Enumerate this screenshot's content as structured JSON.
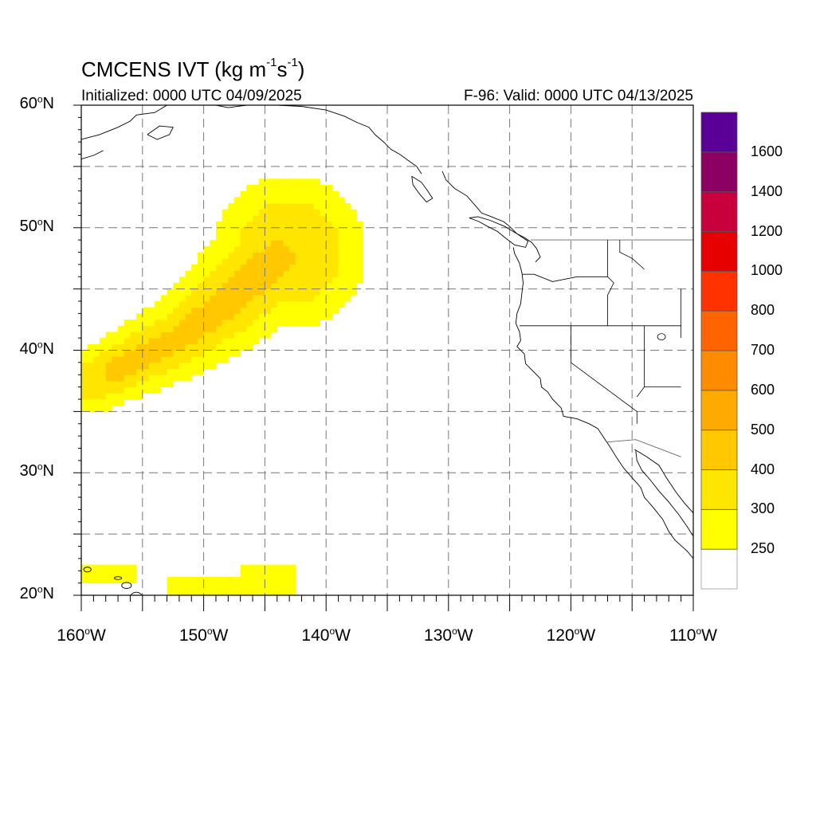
{
  "title": {
    "main": "CMCENS IVT (kg m",
    "sup1": "-1",
    "mid": "s",
    "sup2": "-1",
    "end": ")"
  },
  "initialized": "Initialized: 0000 UTC 04/09/2025",
  "valid": "F-96: Valid: 0000 UTC 04/13/2025",
  "lat_labels": [
    {
      "value": "60",
      "deg": "o",
      "hem": "N",
      "lat": 60
    },
    {
      "value": "50",
      "deg": "o",
      "hem": "N",
      "lat": 50
    },
    {
      "value": "40",
      "deg": "o",
      "hem": "N",
      "lat": 40
    },
    {
      "value": "30",
      "deg": "o",
      "hem": "N",
      "lat": 30
    },
    {
      "value": "20",
      "deg": "o",
      "hem": "N",
      "lat": 20
    }
  ],
  "lon_labels": [
    {
      "value": "160",
      "deg": "o",
      "hem": "W",
      "lon": -160
    },
    {
      "value": "150",
      "deg": "o",
      "hem": "W",
      "lon": -150
    },
    {
      "value": "140",
      "deg": "o",
      "hem": "W",
      "lon": -140
    },
    {
      "value": "130",
      "deg": "o",
      "hem": "W",
      "lon": -130
    },
    {
      "value": "120",
      "deg": "o",
      "hem": "W",
      "lon": -120
    },
    {
      "value": "110",
      "deg": "o",
      "hem": "W",
      "lon": -110
    }
  ],
  "colorbar": {
    "labels": [
      "250",
      "300",
      "400",
      "500",
      "600",
      "700",
      "800",
      "1000",
      "1200",
      "1400",
      "1600"
    ],
    "colors": [
      "#ffffff",
      "#ffff00",
      "#ffe600",
      "#ffc800",
      "#ffaa00",
      "#ff8c00",
      "#ff6400",
      "#ff3200",
      "#e60000",
      "#c8003c",
      "#8c0064",
      "#5a0096"
    ]
  },
  "chart_data": {
    "type": "heatmap",
    "title": "CMCENS IVT (kg m-1s-1)",
    "projection": "cylindrical equidistant",
    "lon_range": [
      -160,
      -110
    ],
    "lat_range": [
      20,
      60
    ],
    "grid": true,
    "grid_interval_deg": 5,
    "units": "kg m-1 s-1",
    "levels": [
      250,
      300,
      400,
      500,
      600,
      700,
      800,
      1000,
      1200,
      1400,
      1600
    ],
    "features": [
      {
        "name": "atmospheric river plume",
        "lon_range": [
          -160,
          -137
        ],
        "lat_range": [
          35,
          54
        ],
        "max_ivt_range": [
          400,
          500
        ],
        "core_axis": [
          [
            -159,
            37.5
          ],
          [
            -152,
            41
          ],
          [
            -148,
            44
          ],
          [
            -144,
            47.5
          ]
        ]
      },
      {
        "name": "Hawaii band",
        "lon_range": [
          -160,
          -142
        ],
        "lat_range": [
          20,
          22.5
        ],
        "max_ivt_range": [
          250,
          300
        ]
      }
    ]
  }
}
